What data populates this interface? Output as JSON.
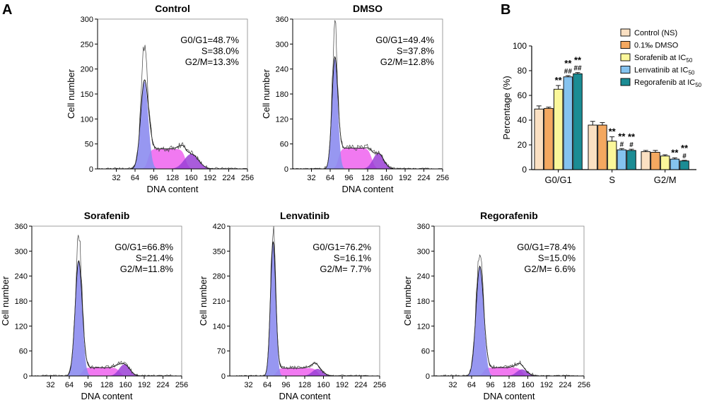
{
  "panel_labels": {
    "a": "A",
    "b": "B"
  },
  "colors": {
    "g1_fill": "#8c8cf0",
    "s_fill": "#f06af0",
    "g2_fill": "#9a3fd6",
    "trace": "#404040",
    "fit": "#000000",
    "bar_control": "#fbe0c2",
    "bar_dmso": "#f4a860",
    "bar_sorafenib": "#fbf79a",
    "bar_lenvatinib": "#85c3ef",
    "bar_regorafenib": "#1b8c94"
  },
  "chart_data": [
    {
      "type": "area",
      "title": "Control",
      "xlabel": "DNA content",
      "ylabel": "Cell number",
      "xticks": [
        "32",
        "64",
        "96",
        "128",
        "160",
        "192",
        "224",
        "256"
      ],
      "yticks": [
        "0",
        "50",
        "100",
        "150",
        "200",
        "250",
        "300"
      ],
      "xlim": [
        0,
        256
      ],
      "ylim": [
        0,
        300
      ],
      "g1": {
        "mean": 80,
        "sd": 6.5,
        "peak": 175
      },
      "g1_obs_peak": 250,
      "s": {
        "start": 86,
        "end": 150,
        "height": 40
      },
      "g2": {
        "mean": 160,
        "sd": 12,
        "peak": 30
      },
      "stats": [
        "G0/G1=48.7%",
        "S=38.0%",
        "G2/M=13.3%"
      ]
    },
    {
      "type": "area",
      "title": "DMSO",
      "xlabel": "DNA content",
      "ylabel": "Cell number",
      "xticks": [
        "32",
        "64",
        "96",
        "128",
        "160",
        "192",
        "224",
        "256"
      ],
      "yticks": [
        "0",
        "60",
        "120",
        "180",
        "240",
        "300",
        "360"
      ],
      "xlim": [
        0,
        256
      ],
      "ylim": [
        0,
        360
      ],
      "g1": {
        "mean": 72,
        "sd": 5,
        "peak": 265
      },
      "g1_obs_peak": 340,
      "s": {
        "start": 78,
        "end": 135,
        "height": 50
      },
      "g2": {
        "mean": 146,
        "sd": 9,
        "peak": 38
      },
      "stats": [
        "G0/G1=49.4%",
        "S=37.8%",
        "G2/M=12.8%"
      ]
    },
    {
      "type": "area",
      "title": "Sorafenib",
      "xlabel": "DNA content",
      "ylabel": "Cell number",
      "xticks": [
        "32",
        "64",
        "96",
        "128",
        "160",
        "192",
        "224",
        "256"
      ],
      "yticks": [
        "0",
        "60",
        "120",
        "180",
        "240",
        "300",
        "360"
      ],
      "xlim": [
        0,
        256
      ],
      "ylim": [
        0,
        360
      ],
      "g1": {
        "mean": 80,
        "sd": 6,
        "peak": 275
      },
      "g1_obs_peak": 330,
      "s": {
        "start": 86,
        "end": 150,
        "height": 20
      },
      "g2": {
        "mean": 158,
        "sd": 9,
        "peak": 28
      },
      "stats": [
        "G0/G1=66.8%",
        "S=21.4%",
        "G2/M=11.8%"
      ]
    },
    {
      "type": "area",
      "title": "Lenvatinib",
      "xlabel": "DNA content",
      "ylabel": "Cell number",
      "xticks": [
        "32",
        "64",
        "96",
        "128",
        "160",
        "192",
        "224",
        "256"
      ],
      "yticks": [
        "0",
        "70",
        "140",
        "210",
        "280",
        "350",
        "420"
      ],
      "xlim": [
        0,
        256
      ],
      "ylim": [
        0,
        420
      ],
      "g1": {
        "mean": 74,
        "sd": 4.5,
        "peak": 375
      },
      "g1_obs_peak": 410,
      "s": {
        "start": 80,
        "end": 150,
        "height": 22
      },
      "g2": {
        "mean": 150,
        "sd": 9,
        "peak": 20
      },
      "stats": [
        "G0/G1=76.2%",
        "S=16.1%",
        "G2/M= 7.7%"
      ]
    },
    {
      "type": "area",
      "title": "Regorafenib",
      "xlabel": "DNA content",
      "ylabel": "Cell number",
      "xticks": [
        "32",
        "64",
        "96",
        "128",
        "160",
        "192",
        "224",
        "256"
      ],
      "yticks": [
        "0",
        "60",
        "120",
        "180",
        "240",
        "300",
        "360"
      ],
      "xlim": [
        0,
        256
      ],
      "ylim": [
        0,
        360
      ],
      "g1": {
        "mean": 78,
        "sd": 6.5,
        "peak": 262
      },
      "g1_obs_peak": 308,
      "s": {
        "start": 84,
        "end": 150,
        "height": 20
      },
      "g2": {
        "mean": 150,
        "sd": 9,
        "peak": 16
      },
      "stats": [
        "G0/G1=78.4%",
        "S=15.0%",
        "G2/M= 6.6%"
      ]
    },
    {
      "type": "bar",
      "title": "",
      "xlabel": "",
      "ylabel": "Percentage (%)",
      "categories": [
        "G0/G1",
        "S",
        "G2/M"
      ],
      "ylim": [
        0,
        100
      ],
      "yticks": [
        "0",
        "20",
        "40",
        "60",
        "80",
        "100"
      ],
      "series": [
        {
          "name": "Control (NS)",
          "values": [
            49,
            36,
            14.5
          ],
          "errors": [
            2.5,
            3,
            1
          ]
        },
        {
          "name": "0.1‰ DMSO",
          "values": [
            49.5,
            36,
            14
          ],
          "errors": [
            1,
            2,
            1.5
          ]
        },
        {
          "name": "Sorafenib at IC",
          "sub": "50",
          "values": [
            65,
            23,
            11
          ],
          "errors": [
            3,
            3.5,
            1
          ]
        },
        {
          "name": "Lenvatinib at IC",
          "sub": "50",
          "values": [
            75,
            16,
            8.5
          ],
          "errors": [
            1,
            1,
            1
          ]
        },
        {
          "name": "Regorafenib at IC",
          "sub": "50",
          "values": [
            77.5,
            15.5,
            7
          ],
          "errors": [
            1,
            1,
            0.5
          ]
        }
      ],
      "annotations": [
        {
          "category": 0,
          "series": 2,
          "lines": [
            "**"
          ]
        },
        {
          "category": 0,
          "series": 3,
          "lines": [
            "**",
            "##"
          ]
        },
        {
          "category": 0,
          "series": 4,
          "lines": [
            "**",
            "##"
          ]
        },
        {
          "category": 1,
          "series": 2,
          "lines": [
            "**"
          ]
        },
        {
          "category": 1,
          "series": 3,
          "lines": [
            "**",
            "#"
          ]
        },
        {
          "category": 1,
          "series": 4,
          "lines": [
            "**",
            "#"
          ]
        },
        {
          "category": 2,
          "series": 3,
          "lines": [
            "**"
          ]
        },
        {
          "category": 2,
          "series": 4,
          "lines": [
            "**",
            "#"
          ]
        }
      ]
    }
  ]
}
